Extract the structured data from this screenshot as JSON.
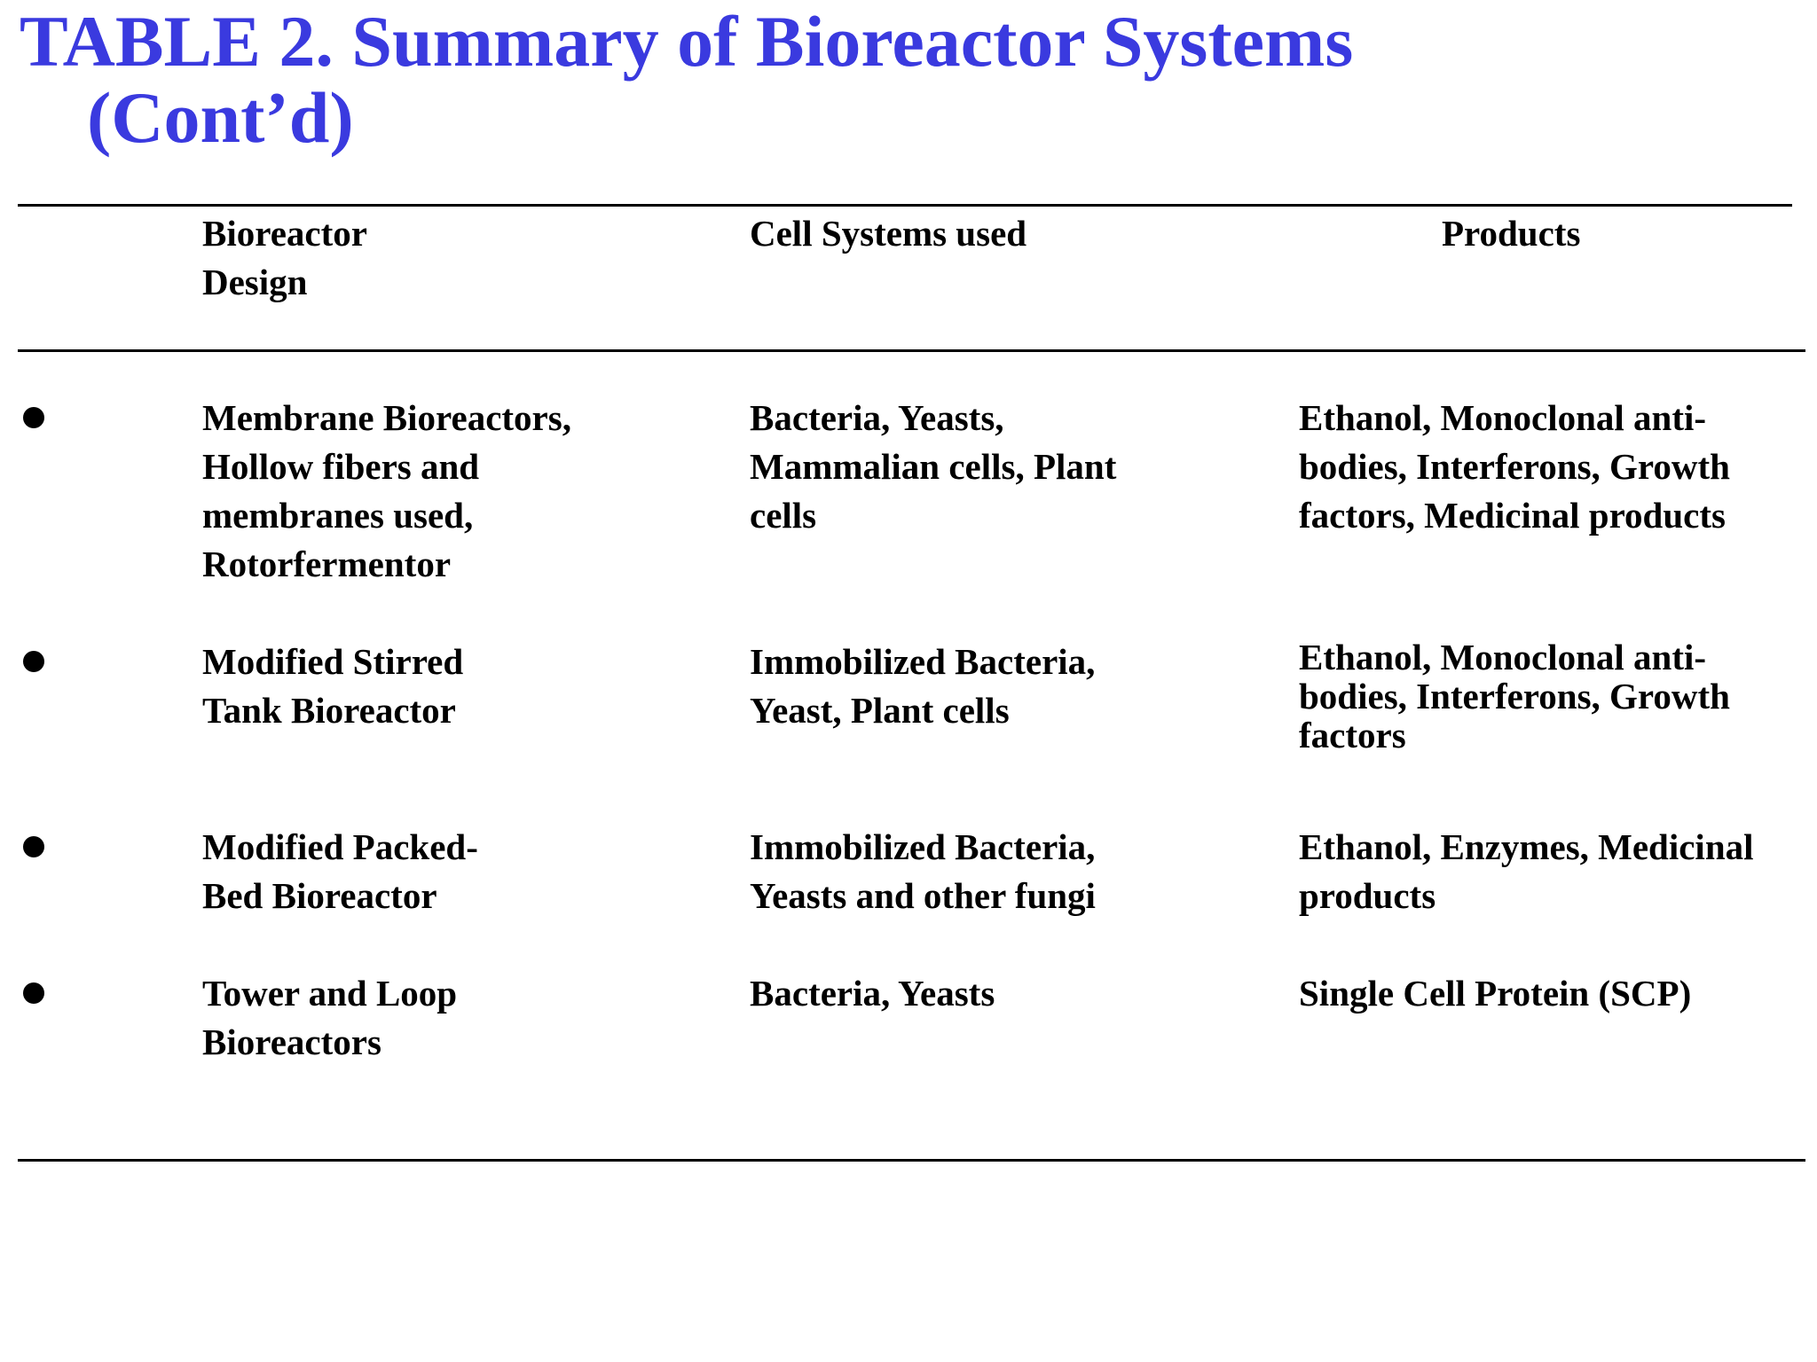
{
  "title": {
    "line1": "TABLE 2.  Summary of Bioreactor Systems",
    "line2": "(Cont’d)"
  },
  "table": {
    "headers": {
      "design": "Bioreactor\nDesign",
      "cells": "Cell Systems used",
      "products": "Products"
    },
    "rows": [
      {
        "design": "Membrane Bioreactors,\nHollow fibers and\nmembranes used,\nRotorfermentor",
        "cells": "Bacteria, Yeasts,\nMammalian cells, Plant\ncells",
        "products": "Ethanol,    Monoclonal anti-\nbodies, Interferons, Growth\nfactors, Medicinal products"
      },
      {
        "design": "Modified Stirred\nTank Bioreactor",
        "cells": "Immobilized Bacteria,\nYeast, Plant cells",
        "products": "Ethanol,    Monoclonal anti-\nbodies, Interferons, Growth\nfactors"
      },
      {
        "design": "Modified Packed-\nBed Bioreactor",
        "cells": "Immobilized Bacteria,\nYeasts and other fungi",
        "products": "Ethanol, Enzymes, Medicinal\nproducts"
      },
      {
        "design": "Tower and Loop\nBioreactors",
        "cells": "Bacteria, Yeasts",
        "products": "Single Cell Protein (SCP)"
      }
    ]
  }
}
